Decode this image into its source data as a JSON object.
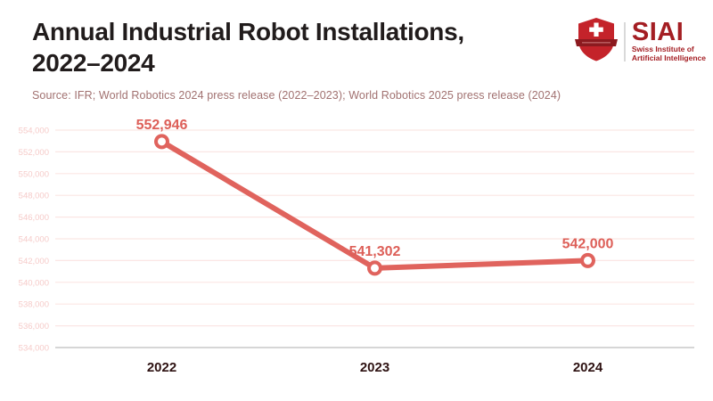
{
  "header": {
    "title_line1": "Annual Industrial Robot Installations,",
    "title_line2": "2022–2024",
    "source": "Source: IFR; World Robotics 2024 press release (2022–2023); World Robotics 2025 press release (2024)"
  },
  "logo": {
    "name": "SIAI",
    "subtitle_line1": "Swiss Institute of",
    "subtitle_line2": "Artificial Intelligence",
    "shield_icon": "swiss-shield-cross-icon"
  },
  "chart_data": {
    "type": "line",
    "title": "Annual Industrial Robot Installations, 2022–2024",
    "categories": [
      "2022",
      "2023",
      "2024"
    ],
    "values": [
      552946,
      541302,
      542000
    ],
    "data_labels": [
      "552,946",
      "541,302",
      "542,000"
    ],
    "ylim": [
      534000,
      554000
    ],
    "ytick_step": 2000,
    "ytick_labels": [
      "554,000",
      "552,000",
      "550,000",
      "548,000",
      "546,000",
      "544,000",
      "542,000",
      "540,000",
      "538,000",
      "536,000",
      "534,000"
    ],
    "grid": true,
    "legend": false,
    "colors": {
      "line": "#e0635d",
      "point_fill": "#ffffff",
      "data_label": "#dd5f58",
      "grid": "#fbe6e4",
      "baseline": "#c9c9c9",
      "ytick": "#f6cbc9",
      "xtick": "#2e1212",
      "title": "#211c1c",
      "source": "#a17170",
      "logo_red": "#a41e23",
      "shield_red": "#c4232a",
      "banner_dark": "#8c1a1f"
    }
  }
}
